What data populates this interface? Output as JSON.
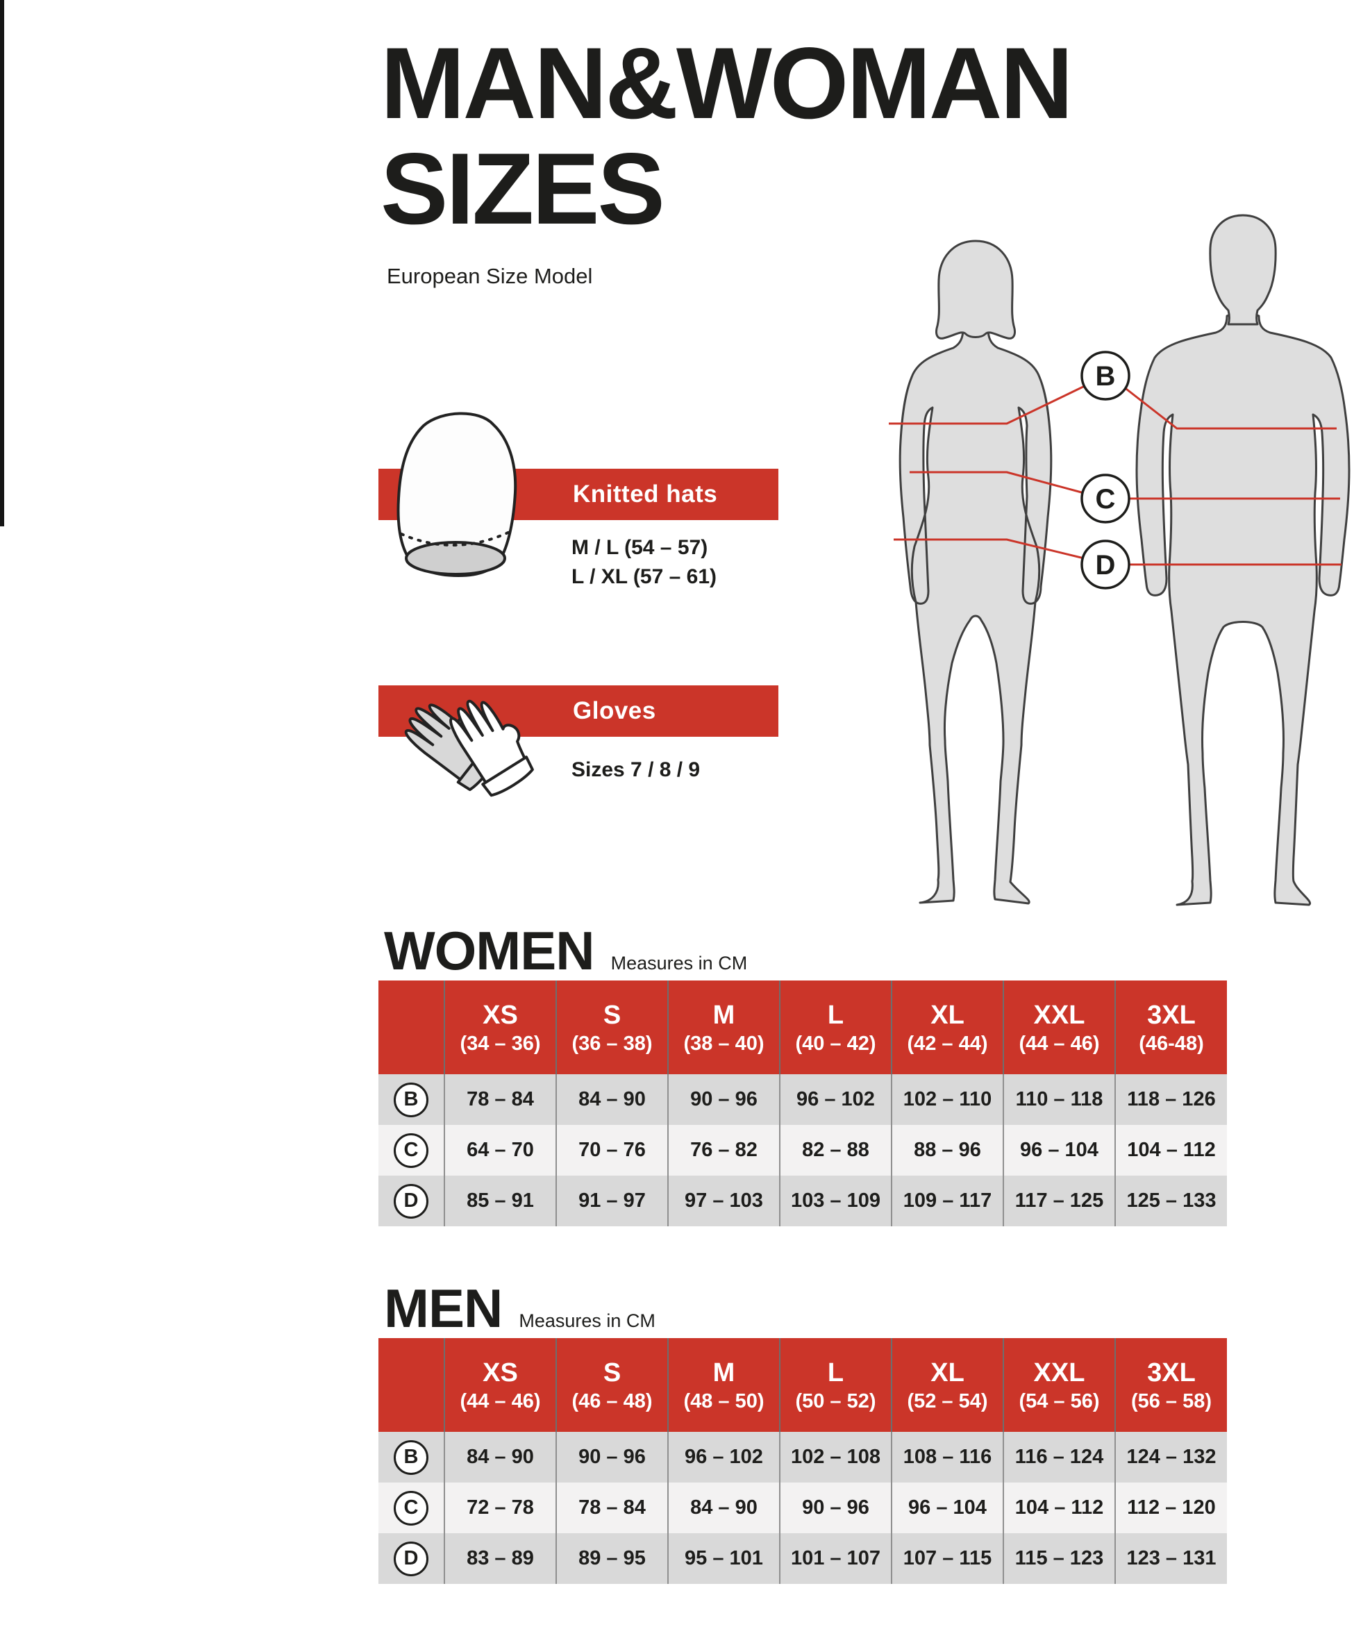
{
  "header": {
    "title": "MAN&WOMAN\nSIZES",
    "subtitle": "European Size Model"
  },
  "products": [
    {
      "name": "Knitted hats",
      "sizes_text": "M / L (54 – 57)\nL / XL (57 – 61)"
    },
    {
      "name": "Gloves",
      "sizes_text": "Sizes 7 / 8 / 9"
    }
  ],
  "figure": {
    "markers": [
      "B",
      "C",
      "D"
    ]
  },
  "tables": [
    {
      "heading": "WOMEN",
      "note": "Measures in CM",
      "columns": [
        {
          "size": "XS",
          "range": "(34 – 36)"
        },
        {
          "size": "S",
          "range": "(36 – 38)"
        },
        {
          "size": "M",
          "range": "(38 – 40)"
        },
        {
          "size": "L",
          "range": "(40 – 42)"
        },
        {
          "size": "XL",
          "range": "(42 – 44)"
        },
        {
          "size": "XXL",
          "range": "(44 – 46)"
        },
        {
          "size": "3XL",
          "range": "(46-48)"
        }
      ],
      "rows": [
        {
          "label": "B",
          "values": [
            "78 – 84",
            "84 – 90",
            "90 – 96",
            "96 – 102",
            "102 – 110",
            "110 – 118",
            "118 – 126"
          ]
        },
        {
          "label": "C",
          "values": [
            "64 – 70",
            "70 – 76",
            "76 – 82",
            "82 – 88",
            "88 – 96",
            "96 – 104",
            "104 – 112"
          ]
        },
        {
          "label": "D",
          "values": [
            "85 – 91",
            "91 – 97",
            "97 – 103",
            "103 – 109",
            "109 – 117",
            "117 – 125",
            "125 – 133"
          ]
        }
      ]
    },
    {
      "heading": "MEN",
      "note": "Measures in CM",
      "columns": [
        {
          "size": "XS",
          "range": "(44 – 46)"
        },
        {
          "size": "S",
          "range": "(46 – 48)"
        },
        {
          "size": "M",
          "range": "(48 – 50)"
        },
        {
          "size": "L",
          "range": "(50 – 52)"
        },
        {
          "size": "XL",
          "range": "(52 – 54)"
        },
        {
          "size": "XXL",
          "range": "(54 – 56)"
        },
        {
          "size": "3XL",
          "range": "(56 – 58)"
        }
      ],
      "rows": [
        {
          "label": "B",
          "values": [
            "84 – 90",
            "90 – 96",
            "96 – 102",
            "102 – 108",
            "108 – 116",
            "116 – 124",
            "124 – 132"
          ]
        },
        {
          "label": "C",
          "values": [
            "72 – 78",
            "78 – 84",
            "84 – 90",
            "90 – 96",
            "96 – 104",
            "104 – 112",
            "112 – 120"
          ]
        },
        {
          "label": "D",
          "values": [
            "83 – 89",
            "89 – 95",
            "95 – 101",
            "101 – 107",
            "107 – 115",
            "115 – 123",
            "123 – 131"
          ]
        }
      ]
    }
  ],
  "colors": {
    "accent": "#cb3529",
    "row_dark": "#d9d9d9",
    "row_light": "#f3f2f2",
    "ink": "#1d1d1b",
    "silhouette": "#dedede"
  }
}
